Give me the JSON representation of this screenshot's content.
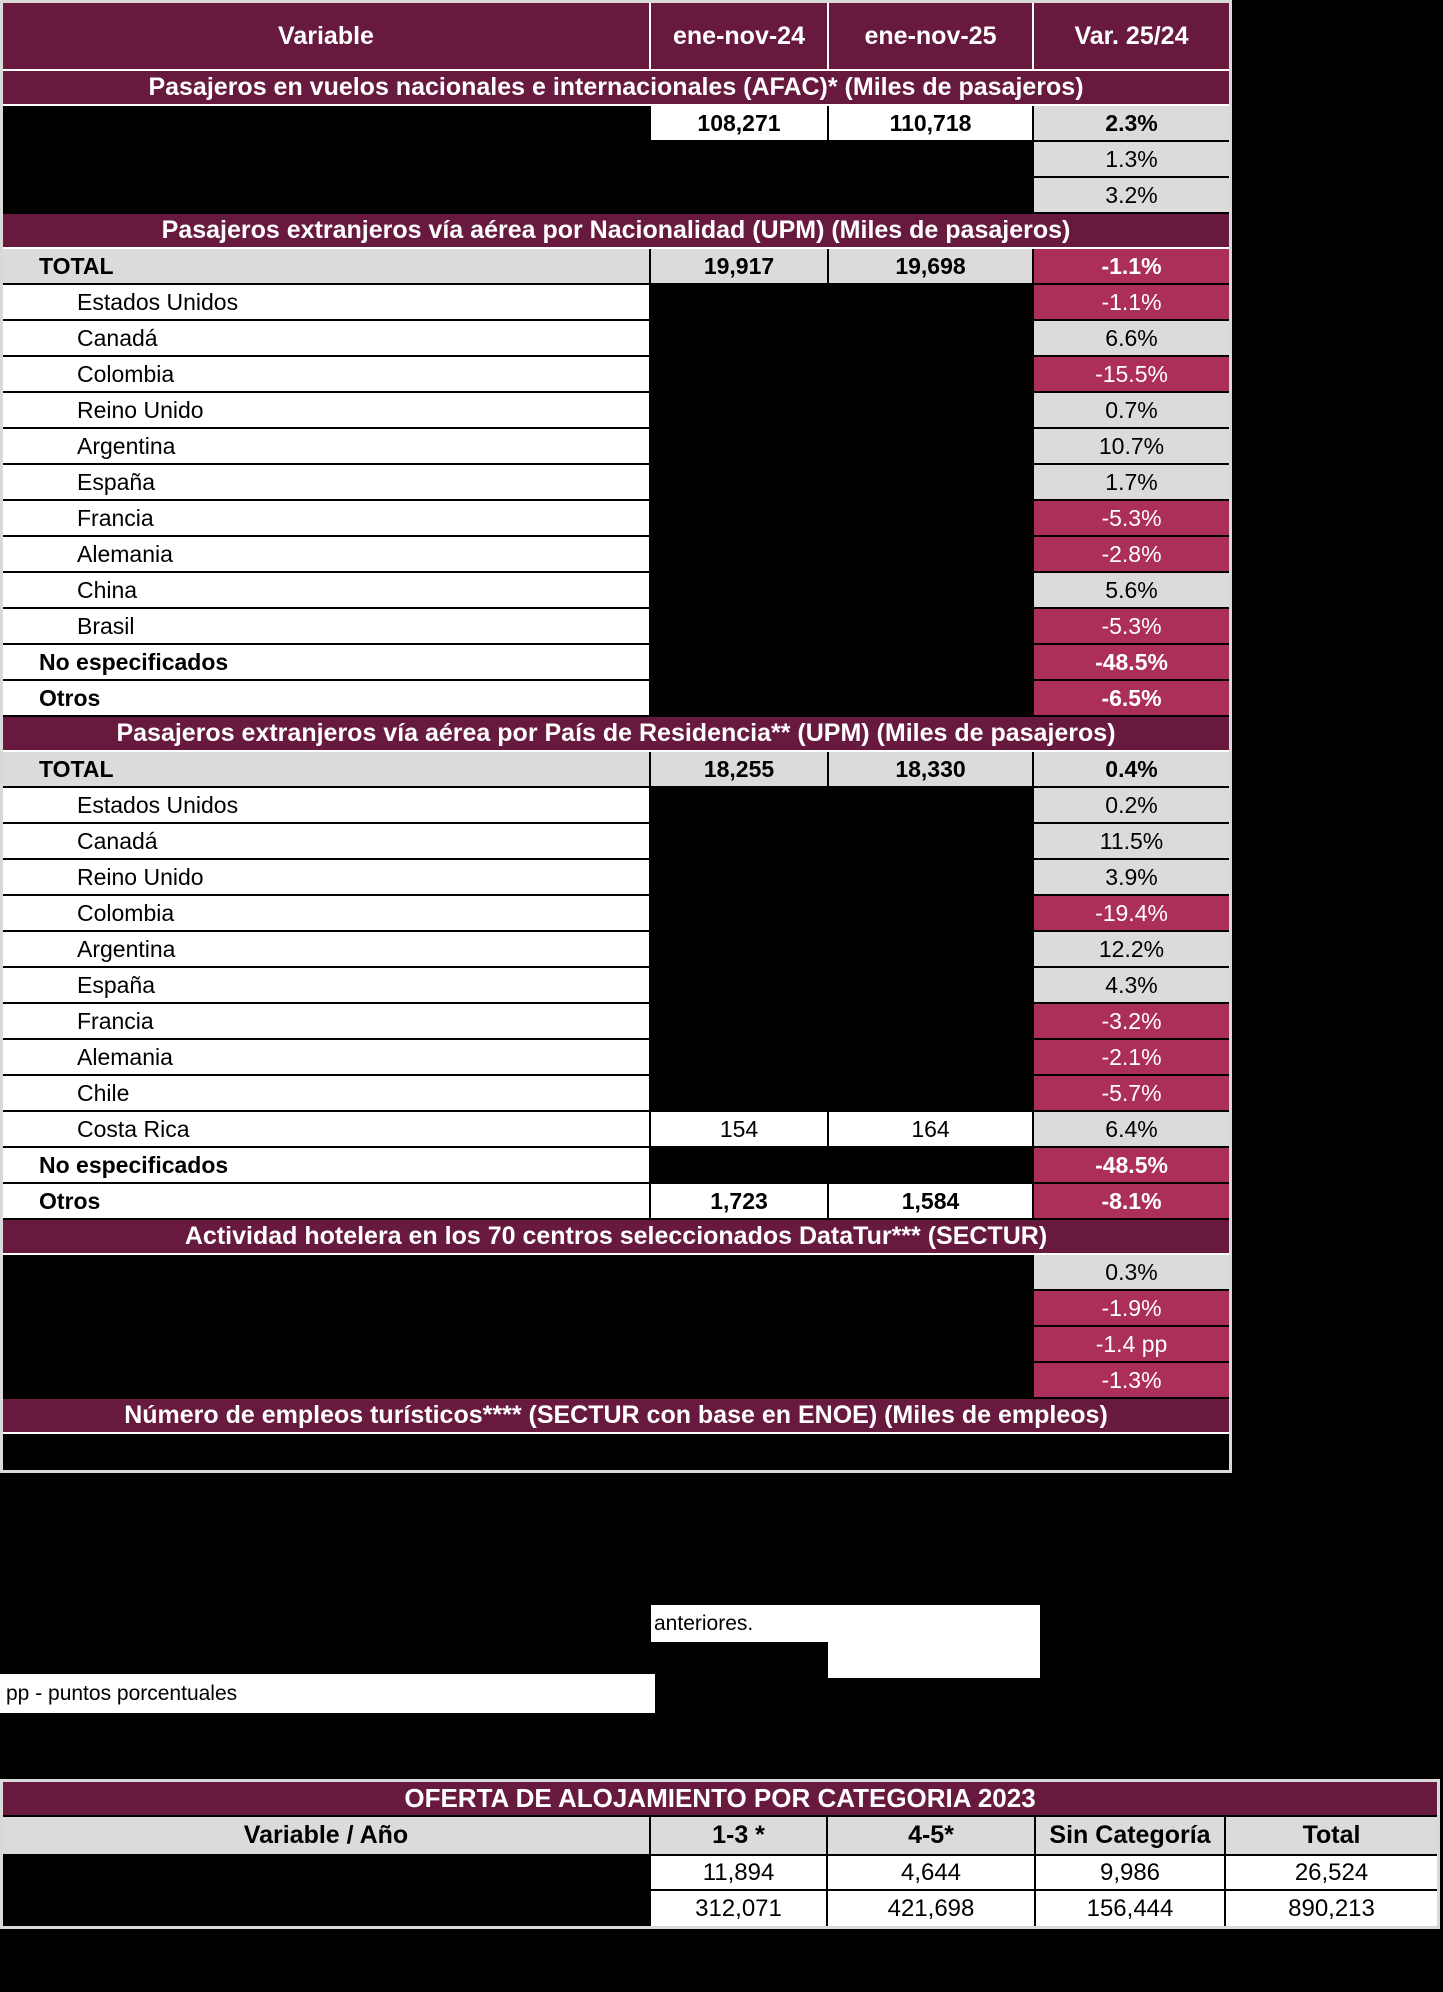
{
  "palette": {
    "maroon": "#67193E",
    "crimson": "#AC2E5B",
    "gray": "#DBDBDB",
    "black": "#000000",
    "white": "#FFFFFF"
  },
  "top_table": {
    "columns": [
      "Variable",
      "ene-nov-24",
      "ene-nov-25",
      "Var. 25/24"
    ],
    "sections": [
      {
        "title": "Pasajeros en vuelos nacionales e internacionales (AFAC)* (Miles de pasajeros)",
        "rows": [
          {
            "label": null,
            "bold": true,
            "v24": "108,271",
            "v25": "110,718",
            "var": "2.3%",
            "tone": "pos"
          },
          {
            "label": null,
            "v24": null,
            "v25": null,
            "var": "1.3%",
            "tone": "pos"
          },
          {
            "label": null,
            "v24": null,
            "v25": null,
            "var": "3.2%",
            "tone": "pos"
          }
        ]
      },
      {
        "title": "Pasajeros extranjeros vía aérea por Nacionalidad (UPM) (Miles de pasajeros)",
        "rows": [
          {
            "label": "TOTAL",
            "bold": true,
            "bg": "gray",
            "v24": "19,917",
            "v25": "19,698",
            "var": "-1.1%",
            "tone": "neg"
          },
          {
            "label": "Estados Unidos",
            "indent": true,
            "v24": null,
            "v25": null,
            "var": "-1.1%",
            "tone": "neg"
          },
          {
            "label": "Canadá",
            "indent": true,
            "v24": null,
            "v25": null,
            "var": "6.6%",
            "tone": "pos"
          },
          {
            "label": "Colombia",
            "indent": true,
            "v24": null,
            "v25": null,
            "var": "-15.5%",
            "tone": "neg"
          },
          {
            "label": "Reino Unido",
            "indent": true,
            "v24": null,
            "v25": null,
            "var": "0.7%",
            "tone": "pos"
          },
          {
            "label": "Argentina",
            "indent": true,
            "v24": null,
            "v25": null,
            "var": "10.7%",
            "tone": "pos"
          },
          {
            "label": "España",
            "indent": true,
            "v24": null,
            "v25": null,
            "var": "1.7%",
            "tone": "pos"
          },
          {
            "label": "Francia",
            "indent": true,
            "v24": null,
            "v25": null,
            "var": "-5.3%",
            "tone": "neg"
          },
          {
            "label": "Alemania",
            "indent": true,
            "v24": null,
            "v25": null,
            "var": "-2.8%",
            "tone": "neg"
          },
          {
            "label": "China",
            "indent": true,
            "v24": null,
            "v25": null,
            "var": "5.6%",
            "tone": "pos"
          },
          {
            "label": "Brasil",
            "indent": true,
            "v24": null,
            "v25": null,
            "var": "-5.3%",
            "tone": "neg"
          },
          {
            "label": "No especificados",
            "bold": true,
            "v24": null,
            "v25": null,
            "var": "-48.5%",
            "tone": "neg"
          },
          {
            "label": "Otros",
            "bold": true,
            "v24": null,
            "v25": null,
            "var": "-6.5%",
            "tone": "neg"
          }
        ]
      },
      {
        "title": "Pasajeros extranjeros vía aérea por País de Residencia** (UPM) (Miles de pasajeros)",
        "rows": [
          {
            "label": "TOTAL",
            "bold": true,
            "bg": "gray",
            "v24": "18,255",
            "v25": "18,330",
            "var": "0.4%",
            "tone": "pos"
          },
          {
            "label": "Estados Unidos",
            "indent": true,
            "v24": null,
            "v25": null,
            "var": "0.2%",
            "tone": "pos"
          },
          {
            "label": "Canadá",
            "indent": true,
            "v24": null,
            "v25": null,
            "var": "11.5%",
            "tone": "pos"
          },
          {
            "label": "Reino Unido",
            "indent": true,
            "v24": null,
            "v25": null,
            "var": "3.9%",
            "tone": "pos"
          },
          {
            "label": "Colombia",
            "indent": true,
            "v24": null,
            "v25": null,
            "var": "-19.4%",
            "tone": "neg"
          },
          {
            "label": "Argentina",
            "indent": true,
            "v24": null,
            "v25": null,
            "var": "12.2%",
            "tone": "pos"
          },
          {
            "label": "España",
            "indent": true,
            "v24": null,
            "v25": null,
            "var": "4.3%",
            "tone": "pos"
          },
          {
            "label": "Francia",
            "indent": true,
            "v24": null,
            "v25": null,
            "var": "-3.2%",
            "tone": "neg"
          },
          {
            "label": "Alemania",
            "indent": true,
            "v24": null,
            "v25": null,
            "var": "-2.1%",
            "tone": "neg"
          },
          {
            "label": "Chile",
            "indent": true,
            "v24": null,
            "v25": null,
            "var": "-5.7%",
            "tone": "neg"
          },
          {
            "label": "Costa Rica",
            "indent": true,
            "v24": "154",
            "v25": "164",
            "var": "6.4%",
            "tone": "pos"
          },
          {
            "label": "No especificados",
            "bold": true,
            "v24": null,
            "v25": null,
            "var": "-48.5%",
            "tone": "neg"
          },
          {
            "label": "Otros",
            "bold": true,
            "v24": "1,723",
            "v25": "1,584",
            "var": "-8.1%",
            "tone": "neg"
          }
        ]
      },
      {
        "title": "Actividad hotelera en los 70 centros seleccionados DataTur*** (SECTUR)",
        "rows": [
          {
            "label": null,
            "v24": null,
            "v25": null,
            "var": "0.3%",
            "tone": "pos"
          },
          {
            "label": null,
            "v24": null,
            "v25": null,
            "var": "-1.9%",
            "tone": "neg"
          },
          {
            "label": null,
            "v24": null,
            "v25": null,
            "var": "-1.4 pp",
            "tone": "neg"
          },
          {
            "label": null,
            "v24": null,
            "v25": null,
            "var": "-1.3%",
            "tone": "neg"
          }
        ]
      },
      {
        "title": "Número de empleos turísticos**** (SECTUR con base en ENOE) (Miles de empleos)",
        "rows": [
          {
            "label": null,
            "v24": null,
            "v25": null,
            "var": null
          }
        ]
      }
    ]
  },
  "notes": {
    "note1": "anteriores.",
    "note2": "pp - puntos porcentuales"
  },
  "bottom_table": {
    "title": "OFERTA DE ALOJAMIENTO POR CATEGORIA 2023",
    "columns": [
      "Variable / Año",
      "1-3 *",
      "4-5*",
      "Sin Categoría",
      "Total"
    ],
    "rows": [
      {
        "label": null,
        "values": [
          "11,894",
          "4,644",
          "9,986",
          "26,524"
        ]
      },
      {
        "label": null,
        "values": [
          "312,071",
          "421,698",
          "156,444",
          "890,213"
        ]
      }
    ]
  }
}
